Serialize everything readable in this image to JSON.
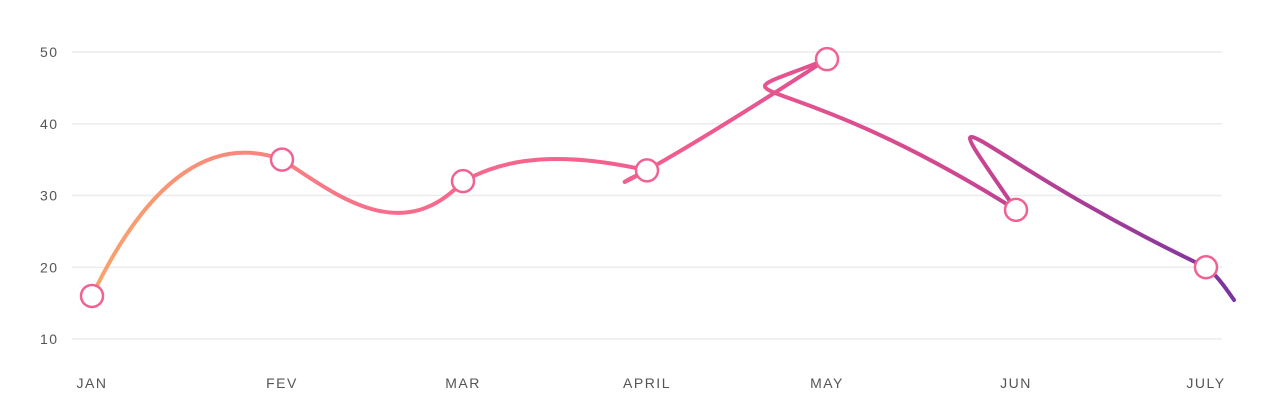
{
  "chart_data": {
    "type": "line",
    "categories": [
      "JAN",
      "FEV",
      "MAR",
      "APRIL",
      "MAY",
      "JUN",
      "JULY"
    ],
    "series": [
      {
        "values": [
          16,
          35,
          32,
          33.5,
          49,
          28,
          20
        ]
      }
    ],
    "y_ticks": [
      "10",
      "20",
      "30",
      "40",
      "50"
    ],
    "ylim": [
      10,
      50
    ],
    "grid": true,
    "legend": "none",
    "line_gradient": [
      "#f9a46c",
      "#f76e8c",
      "#f25d8f",
      "#d2478f",
      "#7a33a0"
    ],
    "point_stroke": "#f06292",
    "grid_color": "#ececec"
  }
}
